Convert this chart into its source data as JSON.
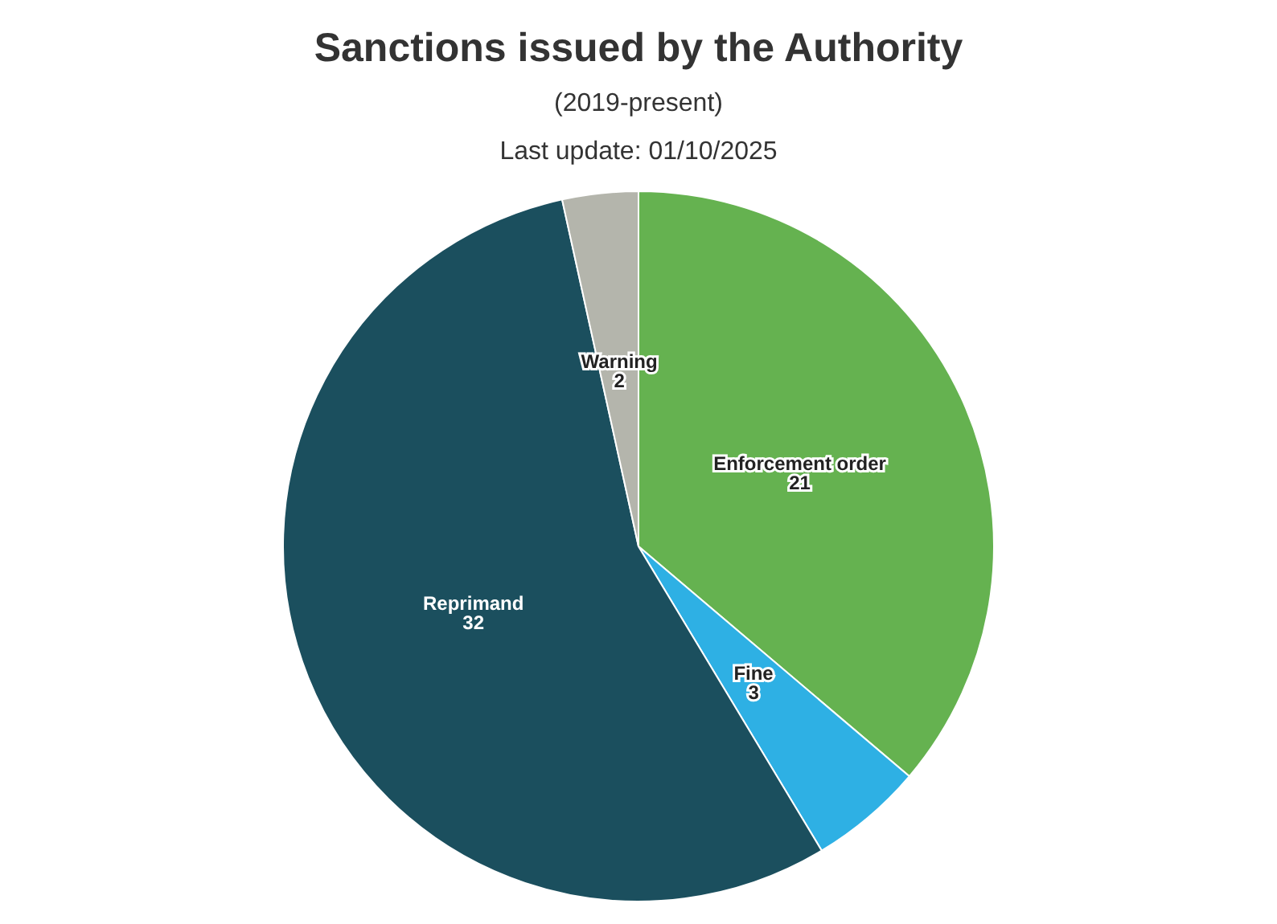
{
  "chart_data": {
    "type": "pie",
    "title": "Sanctions issued by the Authority",
    "subtitle": "(2019-present)",
    "annotations": [
      "Last update: 01/10/2025"
    ],
    "categories": [
      "Enforcement order",
      "Fine",
      "Reprimand",
      "Warning"
    ],
    "values": [
      21,
      3,
      32,
      2
    ],
    "colors": [
      "#65b250",
      "#2eb0e4",
      "#1b4f5e",
      "#b4b5ac"
    ],
    "data_labels": true
  }
}
